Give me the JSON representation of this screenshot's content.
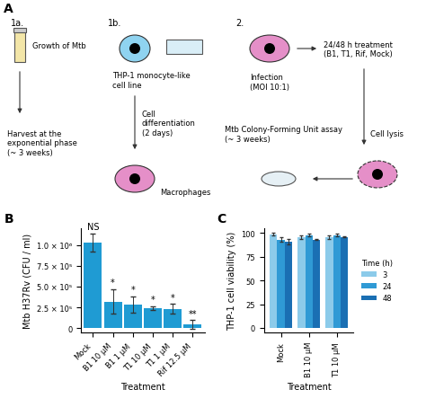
{
  "diagram": {
    "panel_label": "A",
    "nodes": {
      "step1a": "1a.",
      "growth": "Growth of Mtb",
      "harvest": "Harvest at the\nexponential phase\n(~ 3 weeks)",
      "step1b": "1b.",
      "cellline": "THP-1 monocyte-like\ncell line",
      "diff": "Cell\ndifferentiation\n(2 days)",
      "macro": "Macrophages",
      "step2": "2.",
      "infection": "Infection\n(MOI 10:1)",
      "treatment": "24/48 h treatment\n(B1, T1, Rif, Mock)",
      "lysis": "Cell lysis",
      "cfu": "Mtb Colony-Forming Unit assay\n(~ 3 weeks)"
    }
  },
  "chart_data": [
    {
      "type": "bar",
      "panel_label": "B",
      "x_label": "Treatment",
      "y_label": "Mtb H37Rv (CFU / ml)",
      "categories": [
        "Mock",
        "B1 10 µM",
        "B1 1 µM",
        "T1 10 µM",
        "T1 1 µM",
        "Rif 12.5 µM"
      ],
      "values": [
        1030000,
        320000,
        280000,
        240000,
        230000,
        45000
      ],
      "errors": [
        110000,
        150000,
        100000,
        25000,
        60000,
        50000
      ],
      "annotations": [
        "NS",
        "*",
        "*",
        "*",
        "*",
        "**"
      ],
      "color": "#1f9bd3",
      "ylim": [
        -55000,
        1200000
      ],
      "yticks": [
        0,
        {
          "value": 250000,
          "label": "2.5 × 10⁵"
        },
        {
          "value": 500000,
          "label": "5.0 × 10⁵"
        },
        {
          "value": 750000,
          "label": "7.5 × 10⁵"
        },
        {
          "value": 1000000,
          "label": "1.0 × 10⁶"
        }
      ],
      "grid": false
    },
    {
      "type": "bar",
      "panel_label": "C",
      "x_label": "Treatment",
      "y_label": "THP-1 cell viability (%)",
      "categories": [
        "Mock",
        "B1 10 µM",
        "T1 10 µM"
      ],
      "legend_title": "Time (h)",
      "legend": "right",
      "series": [
        {
          "name": "3",
          "color": "#8ccbea",
          "values": [
            99,
            96,
            96
          ],
          "errors": [
            1.5,
            2,
            2
          ]
        },
        {
          "name": "24",
          "color": "#2f9ad5",
          "values": [
            93,
            98,
            98
          ],
          "errors": [
            2.5,
            1.5,
            1.5
          ]
        },
        {
          "name": "48",
          "color": "#1a6fb3",
          "values": [
            91,
            93,
            96
          ],
          "errors": [
            3,
            0.5,
            0.5
          ]
        }
      ],
      "ylim": [
        -5,
        105
      ],
      "yticks": [
        0,
        25,
        50,
        75,
        100
      ],
      "grid": false
    }
  ]
}
